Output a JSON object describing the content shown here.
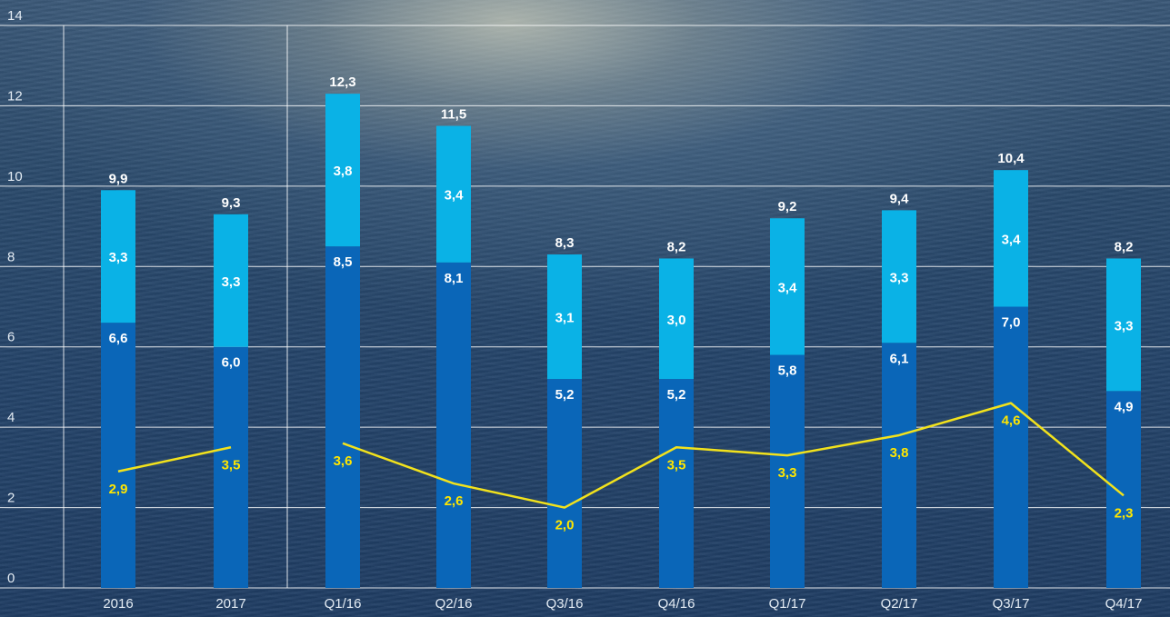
{
  "colors": {
    "bar_lower": "#0a66b8",
    "bar_upper": "#0ab2e6",
    "line": "#f2e21c",
    "line_label": "#ffe600",
    "grid": "#ffffff"
  },
  "chart_data": {
    "type": "bar",
    "stacked": true,
    "categories": [
      "2016",
      "2017",
      "Q1/16",
      "Q2/16",
      "Q3/16",
      "Q4/16",
      "Q1/17",
      "Q2/17",
      "Q3/17",
      "Q4/17"
    ],
    "series": [
      {
        "values": [
          6.6,
          6.0,
          8.5,
          8.1,
          5.2,
          5.2,
          5.8,
          6.1,
          7.0,
          4.9
        ]
      },
      {
        "values": [
          3.3,
          3.3,
          3.8,
          3.4,
          3.1,
          3.0,
          3.4,
          3.3,
          3.4,
          3.3
        ]
      }
    ],
    "totals": [
      "9,9",
      "9,3",
      "12,3",
      "11,5",
      "8,3",
      "8,2",
      "9,2",
      "9,4",
      "10,4",
      "8,2"
    ],
    "lower_labels": [
      "6,6",
      "6,0",
      "8,5",
      "8,1",
      "5,2",
      "5,2",
      "5,8",
      "6,1",
      "7,0",
      "4,9"
    ],
    "upper_labels": [
      "3,3",
      "3,3",
      "3,8",
      "3,4",
      "3,1",
      "3,0",
      "3,4",
      "3,3",
      "3,4",
      "3,3"
    ],
    "line": {
      "type": "line",
      "segments": [
        [
          0,
          1
        ],
        [
          2,
          3,
          4,
          5,
          6,
          7,
          8,
          9
        ]
      ],
      "values": [
        2.9,
        3.5,
        3.6,
        2.6,
        2.0,
        3.5,
        3.3,
        3.8,
        4.6,
        2.3
      ],
      "labels": [
        "2,9",
        "3,5",
        "3,6",
        "2,6",
        "2,0",
        "3,5",
        "3,3",
        "3,8",
        "4,6",
        "2,3"
      ]
    },
    "ylim": [
      0,
      14
    ],
    "yticks": [
      "0",
      "2",
      "4",
      "6",
      "8",
      "10",
      "12",
      "14"
    ],
    "grid": true,
    "xlabel": "",
    "ylabel": "",
    "title": ""
  }
}
